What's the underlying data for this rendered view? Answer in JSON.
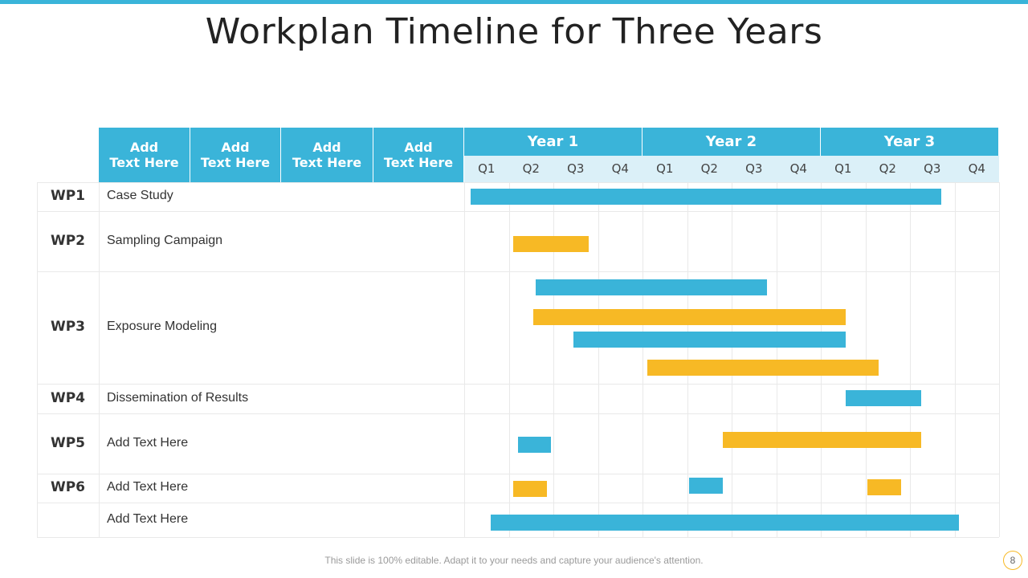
{
  "title": "Workplan Timeline for Three Years",
  "footer": "This slide is 100% editable. Adapt it to your needs and capture your audience's attention.",
  "page_number": "8",
  "colors": {
    "accent": "#3ab4d9",
    "secondary": "#f7b925",
    "quarter_bg": "#dbf0f8"
  },
  "header_columns": [
    "Add\nText Here",
    "Add\nText Here",
    "Add\nText Here",
    "Add\nText Here"
  ],
  "years": [
    "Year 1",
    "Year 2",
    "Year 3"
  ],
  "quarters": [
    "Q1",
    "Q2",
    "Q3",
    "Q4",
    "Q1",
    "Q2",
    "Q3",
    "Q4",
    "Q1",
    "Q2",
    "Q3",
    "Q4"
  ],
  "rows": [
    {
      "wp": "WP1",
      "task": "Case Study"
    },
    {
      "wp": "WP2",
      "task": "Sampling Campaign"
    },
    {
      "wp": "WP3",
      "task": "Exposure Modeling"
    },
    {
      "wp": "WP4",
      "task": "Dissemination of Results"
    },
    {
      "wp": "WP5",
      "task": "Add Text Here"
    },
    {
      "wp": "WP6",
      "task": "Add Text Here"
    },
    {
      "wp": "",
      "task": "Add Text Here"
    }
  ],
  "chart_data": {
    "type": "gantt",
    "title": "Workplan Timeline for Three Years",
    "x_unit": "quarter index (0 = start of Year 1 Q1, 12 = end of Year 3 Q4)",
    "xlim": [
      0,
      12
    ],
    "bars": [
      {
        "row": 0,
        "color": "blue",
        "start": 0.15,
        "end": 10.7
      },
      {
        "row": 1,
        "color": "yellow",
        "start": 1.1,
        "end": 2.8
      },
      {
        "row": 2,
        "color": "blue",
        "start": 1.6,
        "end": 6.8
      },
      {
        "row": 2,
        "color": "yellow",
        "start": 1.55,
        "end": 8.55
      },
      {
        "row": 2,
        "color": "blue",
        "start": 2.45,
        "end": 8.55
      },
      {
        "row": 2,
        "color": "yellow",
        "start": 4.1,
        "end": 9.3
      },
      {
        "row": 3,
        "color": "blue",
        "start": 8.55,
        "end": 10.25
      },
      {
        "row": 4,
        "color": "blue",
        "start": 1.2,
        "end": 1.95
      },
      {
        "row": 4,
        "color": "yellow",
        "start": 5.8,
        "end": 10.25
      },
      {
        "row": 5,
        "color": "yellow",
        "start": 1.1,
        "end": 1.85
      },
      {
        "row": 5,
        "color": "blue",
        "start": 5.05,
        "end": 5.8
      },
      {
        "row": 5,
        "color": "yellow",
        "start": 9.05,
        "end": 9.8
      },
      {
        "row": 6,
        "color": "blue",
        "start": 0.6,
        "end": 11.1
      }
    ]
  }
}
